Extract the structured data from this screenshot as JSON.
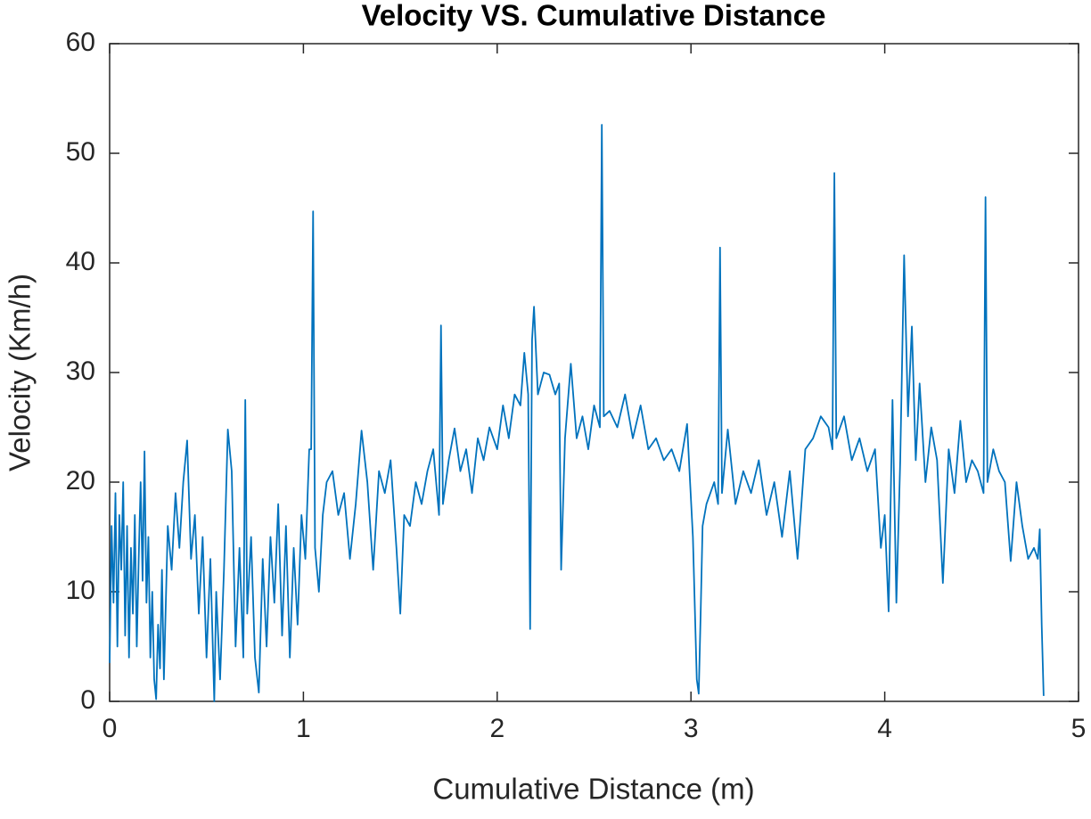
{
  "chart_data": {
    "type": "line",
    "title": "Velocity VS. Cumulative Distance",
    "x_label": "Cumulative Distance (m)",
    "y_label": "Velocity (Km/h)",
    "color": "#0072bd",
    "xlim": [
      0,
      5
    ],
    "xticks": [
      0,
      1,
      2,
      3,
      4,
      5
    ],
    "ylim": [
      0,
      60
    ],
    "yticks": [
      0,
      10,
      20,
      30,
      40,
      50,
      60
    ],
    "x": [
      0,
      0.01,
      0.02,
      0.03,
      0.04,
      0.05,
      0.06,
      0.07,
      0.08,
      0.09,
      0.1,
      0.11,
      0.12,
      0.13,
      0.14,
      0.15,
      0.16,
      0.17,
      0.18,
      0.19,
      0.2,
      0.21,
      0.22,
      0.23,
      0.24,
      0.25,
      0.26,
      0.27,
      0.28,
      0.29,
      0.3,
      0.32,
      0.34,
      0.36,
      0.38,
      0.4,
      0.42,
      0.44,
      0.46,
      0.48,
      0.5,
      0.52,
      0.54,
      0.55,
      0.57,
      0.59,
      0.61,
      0.63,
      0.65,
      0.67,
      0.69,
      0.7,
      0.71,
      0.73,
      0.75,
      0.77,
      0.79,
      0.81,
      0.83,
      0.85,
      0.87,
      0.89,
      0.91,
      0.93,
      0.95,
      0.97,
      0.99,
      1.01,
      1.03,
      1.04,
      1.05,
      1.06,
      1.08,
      1.1,
      1.12,
      1.15,
      1.18,
      1.21,
      1.24,
      1.27,
      1.3,
      1.33,
      1.36,
      1.39,
      1.42,
      1.45,
      1.48,
      1.5,
      1.52,
      1.55,
      1.58,
      1.61,
      1.64,
      1.67,
      1.7,
      1.71,
      1.72,
      1.75,
      1.78,
      1.81,
      1.84,
      1.87,
      1.9,
      1.93,
      1.96,
      2.0,
      2.03,
      2.06,
      2.09,
      2.12,
      2.14,
      2.16,
      2.17,
      2.18,
      2.19,
      2.21,
      2.24,
      2.27,
      2.3,
      2.32,
      2.33,
      2.35,
      2.38,
      2.41,
      2.44,
      2.47,
      2.5,
      2.53,
      2.54,
      2.55,
      2.58,
      2.62,
      2.66,
      2.7,
      2.74,
      2.78,
      2.82,
      2.86,
      2.9,
      2.94,
      2.98,
      3.01,
      3.03,
      3.04,
      3.05,
      3.06,
      3.08,
      3.1,
      3.12,
      3.14,
      3.15,
      3.16,
      3.19,
      3.23,
      3.27,
      3.31,
      3.35,
      3.39,
      3.43,
      3.47,
      3.51,
      3.55,
      3.59,
      3.63,
      3.67,
      3.71,
      3.73,
      3.74,
      3.75,
      3.79,
      3.83,
      3.87,
      3.91,
      3.95,
      3.98,
      4.0,
      4.02,
      4.04,
      4.06,
      4.08,
      4.1,
      4.12,
      4.14,
      4.16,
      4.18,
      4.21,
      4.24,
      4.27,
      4.3,
      4.33,
      4.36,
      4.39,
      4.42,
      4.45,
      4.48,
      4.51,
      4.52,
      4.53,
      4.56,
      4.59,
      4.62,
      4.65,
      4.68,
      4.71,
      4.74,
      4.77,
      4.79,
      4.8,
      4.81,
      4.82
    ],
    "values": [
      3.5,
      16,
      9,
      19,
      5,
      17,
      12,
      20,
      6,
      16,
      4,
      14,
      8,
      17,
      5,
      13,
      20,
      11,
      22.8,
      9,
      15,
      4,
      10,
      2,
      0.2,
      7,
      3,
      12,
      2,
      9,
      16,
      12,
      19,
      14,
      20,
      23.8,
      13,
      17,
      8,
      15,
      4,
      13,
      0,
      10,
      2,
      12,
      24.8,
      21,
      5,
      14,
      4,
      27.5,
      8,
      15,
      4,
      0.8,
      13,
      5,
      15,
      9,
      18,
      6,
      16,
      4,
      14,
      7,
      17,
      13,
      23,
      23,
      44.7,
      14,
      10,
      17,
      20,
      21,
      17,
      19,
      13,
      18,
      24.7,
      20,
      12,
      21,
      19,
      22,
      14,
      8,
      17,
      16,
      20,
      18,
      21,
      23,
      17,
      34.3,
      18,
      22,
      24.9,
      21,
      23,
      19,
      24,
      22,
      25,
      23,
      27,
      24,
      28,
      27,
      31.8,
      28,
      6.6,
      33,
      36,
      28,
      30,
      29.8,
      28,
      29,
      12,
      24,
      30.8,
      24,
      26,
      23,
      27,
      25,
      52.6,
      26,
      26.5,
      25,
      28,
      24,
      27,
      23,
      24,
      22,
      23,
      21,
      25.3,
      15,
      2,
      0.7,
      8,
      16,
      18,
      19,
      20,
      18,
      41.4,
      19,
      24.8,
      18,
      21,
      19,
      22,
      17,
      20,
      15,
      21,
      13,
      23,
      24,
      26,
      25,
      23,
      48.2,
      24,
      26,
      22,
      24,
      21,
      23,
      14,
      17,
      8.2,
      27.5,
      9,
      22,
      40.7,
      26,
      34.2,
      22,
      29,
      20,
      25,
      22,
      10.8,
      23,
      19,
      25.6,
      20,
      22,
      21,
      19,
      46,
      20,
      23,
      21,
      20,
      12.8,
      20,
      16,
      13,
      14,
      13,
      15.7,
      7,
      0.5
    ]
  }
}
